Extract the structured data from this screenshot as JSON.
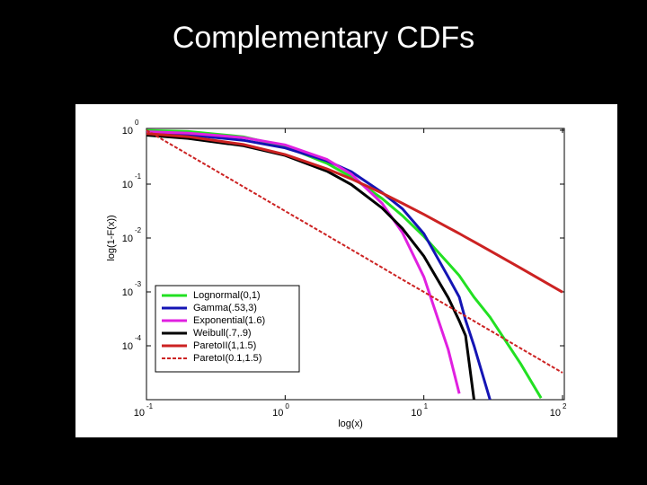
{
  "chart_data": {
    "type": "line",
    "title": "Complementary CDFs",
    "x_label": "log(x)",
    "y_label": "log(1-F(x))",
    "log_x": true,
    "log_y": true,
    "grid": false,
    "legend": "lower left",
    "xlim": [
      0.1,
      100
    ],
    "ylim": [
      1e-05,
      1
    ],
    "xticks": [
      {
        "value": 0.1,
        "label": "10",
        "exponent": "-1"
      },
      {
        "value": 1,
        "label": "10",
        "exponent": "0"
      },
      {
        "value": 10,
        "label": "10",
        "exponent": "1"
      },
      {
        "value": 100,
        "label": "10",
        "exponent": "2"
      }
    ],
    "yticks": [
      {
        "value": 1,
        "label": "10",
        "exponent": "0"
      },
      {
        "value": 0.1,
        "label": "10",
        "exponent": "-1"
      },
      {
        "value": 0.01,
        "label": "10",
        "exponent": "-2"
      },
      {
        "value": 0.001,
        "label": "10",
        "exponent": "-3"
      },
      {
        "value": 0.0001,
        "label": "10",
        "exponent": "-4"
      }
    ],
    "x": [
      0.1,
      0.2,
      0.5,
      1,
      2,
      3,
      5,
      7,
      10,
      15,
      18,
      20,
      23,
      30,
      50,
      70,
      100
    ],
    "series": [
      {
        "name": "Lognormal(0,1)",
        "color": "#22e022",
        "dash": false,
        "values": [
          0.989,
          0.946,
          0.756,
          0.5,
          0.244,
          0.136,
          0.054,
          0.026,
          0.0107,
          0.0034,
          0.002,
          0.00135,
          0.0008,
          0.00034,
          4.6e-05,
          1.07e-05,
          null
        ]
      },
      {
        "name": "Gamma(.53,3)",
        "color": "#1414b4",
        "dash": false,
        "values": [
          0.88,
          0.82,
          0.65,
          0.47,
          0.27,
          0.17,
          0.07,
          0.035,
          0.012,
          0.0019,
          0.0008,
          0.0003,
          0.0001,
          1e-05,
          null,
          null,
          null
        ]
      },
      {
        "name": "Exponential(1.6)",
        "color": "#e020e0",
        "dash": false,
        "values": [
          0.94,
          0.88,
          0.73,
          0.535,
          0.287,
          0.153,
          0.044,
          0.0126,
          0.0019,
          8.5e-05,
          1.3e-05,
          null,
          null,
          null,
          null,
          null,
          null
        ]
      },
      {
        "name": "Weibull(.7,.9)",
        "color": "#000000",
        "dash": false,
        "values": [
          0.81,
          0.705,
          0.515,
          0.34,
          0.174,
          0.098,
          0.036,
          0.015,
          0.0046,
          0.00078,
          0.00029,
          0.000155,
          1e-05,
          null,
          null,
          null,
          null
        ]
      },
      {
        "name": "ParetoII(1,1.5)",
        "color": "#cc2222",
        "dash": false,
        "values": [
          0.867,
          0.76,
          0.544,
          0.354,
          0.192,
          0.125,
          0.068,
          0.044,
          0.0274,
          0.0156,
          0.0121,
          0.0104,
          0.0085,
          0.0058,
          0.00275,
          0.00167,
          0.00099
        ]
      },
      {
        "name": "ParetoI(0.1,1.5)",
        "color": "#cc2222",
        "dash": true,
        "values": [
          1,
          0.354,
          0.0894,
          0.0316,
          0.0112,
          0.00609,
          0.00283,
          0.00169,
          0.001,
          0.000544,
          0.000414,
          0.000354,
          0.000287,
          0.000193,
          8.94e-05,
          5.4e-05,
          3.16e-05
        ]
      }
    ]
  }
}
